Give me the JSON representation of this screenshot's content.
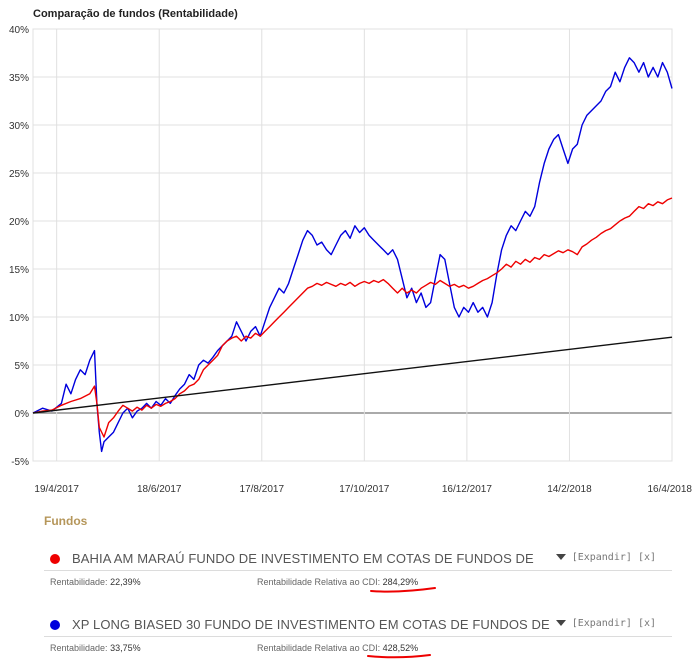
{
  "chart_data": {
    "type": "line",
    "title": "Comparação de fundos (Rentabilidade)",
    "xlabel": "",
    "ylabel": "",
    "ylim": [
      -5,
      40
    ],
    "yticks": [
      "-5%",
      "0%",
      "5%",
      "10%",
      "15%",
      "20%",
      "25%",
      "30%",
      "35%",
      "40%"
    ],
    "xticks": [
      "19/4/2017",
      "18/6/2017",
      "17/8/2017",
      "17/10/2017",
      "16/12/2017",
      "14/2/2018",
      "16/4/2018"
    ],
    "grid": true,
    "legend": "none",
    "series": [
      {
        "color": "#0000dd",
        "points": [
          [
            0,
            0
          ],
          [
            4,
            0.5
          ],
          [
            8,
            0.2
          ],
          [
            12,
            1.0
          ],
          [
            14,
            3.0
          ],
          [
            16,
            2.0
          ],
          [
            18,
            3.5
          ],
          [
            20,
            4.5
          ],
          [
            22,
            4.0
          ],
          [
            24,
            5.5
          ],
          [
            26,
            6.5
          ],
          [
            27,
            1.0
          ],
          [
            28,
            -2.0
          ],
          [
            29,
            -4.0
          ],
          [
            30,
            -3.0
          ],
          [
            32,
            -2.5
          ],
          [
            34,
            -2.0
          ],
          [
            36,
            -1.0
          ],
          [
            38,
            0.0
          ],
          [
            40,
            0.5
          ],
          [
            42,
            -0.5
          ],
          [
            44,
            0.2
          ],
          [
            46,
            0.5
          ],
          [
            48,
            1.0
          ],
          [
            50,
            0.5
          ],
          [
            52,
            1.2
          ],
          [
            54,
            0.8
          ],
          [
            56,
            1.5
          ],
          [
            58,
            1.0
          ],
          [
            60,
            1.8
          ],
          [
            62,
            2.5
          ],
          [
            64,
            3.0
          ],
          [
            66,
            4.0
          ],
          [
            68,
            3.5
          ],
          [
            70,
            5.0
          ],
          [
            72,
            5.5
          ],
          [
            74,
            5.2
          ],
          [
            76,
            5.8
          ],
          [
            78,
            6.5
          ],
          [
            80,
            7.0
          ],
          [
            82,
            7.5
          ],
          [
            84,
            8.0
          ],
          [
            86,
            9.5
          ],
          [
            88,
            8.5
          ],
          [
            90,
            7.5
          ],
          [
            92,
            8.5
          ],
          [
            94,
            9.0
          ],
          [
            96,
            8.0
          ],
          [
            98,
            9.5
          ],
          [
            100,
            11.0
          ],
          [
            102,
            12.0
          ],
          [
            104,
            13.0
          ],
          [
            106,
            12.5
          ],
          [
            108,
            13.5
          ],
          [
            110,
            15.0
          ],
          [
            112,
            16.5
          ],
          [
            114,
            18.0
          ],
          [
            116,
            19.0
          ],
          [
            118,
            18.5
          ],
          [
            120,
            17.5
          ],
          [
            122,
            17.8
          ],
          [
            124,
            17.0
          ],
          [
            126,
            16.5
          ],
          [
            128,
            17.5
          ],
          [
            130,
            18.5
          ],
          [
            132,
            19.0
          ],
          [
            134,
            18.2
          ],
          [
            136,
            19.5
          ],
          [
            138,
            18.8
          ],
          [
            140,
            19.3
          ],
          [
            142,
            18.5
          ],
          [
            144,
            18.0
          ],
          [
            146,
            17.5
          ],
          [
            148,
            17.0
          ],
          [
            150,
            16.5
          ],
          [
            152,
            17.0
          ],
          [
            154,
            16.0
          ],
          [
            156,
            14.0
          ],
          [
            158,
            12.0
          ],
          [
            160,
            13.0
          ],
          [
            162,
            11.5
          ],
          [
            164,
            12.5
          ],
          [
            166,
            11.0
          ],
          [
            168,
            11.5
          ],
          [
            170,
            14.0
          ],
          [
            172,
            16.5
          ],
          [
            174,
            16.0
          ],
          [
            176,
            13.5
          ],
          [
            178,
            11.0
          ],
          [
            180,
            10.0
          ],
          [
            182,
            11.0
          ],
          [
            184,
            10.5
          ],
          [
            186,
            11.5
          ],
          [
            188,
            10.5
          ],
          [
            190,
            11.0
          ],
          [
            192,
            10.0
          ],
          [
            194,
            11.5
          ],
          [
            196,
            14.5
          ],
          [
            198,
            17.0
          ],
          [
            200,
            18.5
          ],
          [
            202,
            19.5
          ],
          [
            204,
            19.0
          ],
          [
            206,
            20.0
          ],
          [
            208,
            21.0
          ],
          [
            210,
            20.5
          ],
          [
            212,
            21.5
          ],
          [
            214,
            24.0
          ],
          [
            216,
            26.0
          ],
          [
            218,
            27.5
          ],
          [
            220,
            28.5
          ],
          [
            222,
            29.0
          ],
          [
            224,
            27.5
          ],
          [
            226,
            26.0
          ],
          [
            228,
            27.5
          ],
          [
            230,
            28.0
          ],
          [
            232,
            30.0
          ],
          [
            234,
            31.0
          ],
          [
            236,
            31.5
          ],
          [
            238,
            32.0
          ],
          [
            240,
            32.5
          ],
          [
            242,
            33.5
          ],
          [
            244,
            34.0
          ],
          [
            246,
            35.5
          ],
          [
            248,
            34.5
          ],
          [
            250,
            36.0
          ],
          [
            252,
            37.0
          ],
          [
            254,
            36.5
          ],
          [
            256,
            35.5
          ],
          [
            258,
            36.5
          ],
          [
            260,
            35.0
          ],
          [
            262,
            36.0
          ],
          [
            264,
            35.0
          ],
          [
            266,
            36.5
          ],
          [
            268,
            35.5
          ],
          [
            270,
            33.8
          ]
        ]
      },
      {
        "color": "#ee0000",
        "points": [
          [
            0,
            0
          ],
          [
            4,
            0.2
          ],
          [
            8,
            0.3
          ],
          [
            12,
            0.8
          ],
          [
            16,
            1.2
          ],
          [
            20,
            1.5
          ],
          [
            24,
            2.0
          ],
          [
            26,
            2.8
          ],
          [
            27,
            1.0
          ],
          [
            28,
            -1.5
          ],
          [
            30,
            -2.5
          ],
          [
            32,
            -1.0
          ],
          [
            34,
            -0.5
          ],
          [
            36,
            0.2
          ],
          [
            38,
            0.8
          ],
          [
            40,
            0.5
          ],
          [
            42,
            0.2
          ],
          [
            44,
            0.6
          ],
          [
            46,
            0.3
          ],
          [
            48,
            0.8
          ],
          [
            50,
            0.5
          ],
          [
            52,
            0.9
          ],
          [
            54,
            0.7
          ],
          [
            56,
            1.0
          ],
          [
            58,
            1.2
          ],
          [
            60,
            1.5
          ],
          [
            62,
            2.0
          ],
          [
            64,
            2.3
          ],
          [
            66,
            2.8
          ],
          [
            68,
            3.0
          ],
          [
            70,
            3.5
          ],
          [
            72,
            4.5
          ],
          [
            74,
            5.0
          ],
          [
            76,
            5.5
          ],
          [
            78,
            6.0
          ],
          [
            80,
            7.0
          ],
          [
            82,
            7.5
          ],
          [
            84,
            7.8
          ],
          [
            86,
            8.0
          ],
          [
            88,
            7.5
          ],
          [
            90,
            8.0
          ],
          [
            92,
            7.8
          ],
          [
            94,
            8.3
          ],
          [
            96,
            8.0
          ],
          [
            98,
            8.5
          ],
          [
            100,
            9.0
          ],
          [
            102,
            9.5
          ],
          [
            104,
            10.0
          ],
          [
            106,
            10.5
          ],
          [
            108,
            11.0
          ],
          [
            110,
            11.5
          ],
          [
            112,
            12.0
          ],
          [
            114,
            12.5
          ],
          [
            116,
            13.0
          ],
          [
            118,
            13.2
          ],
          [
            120,
            13.5
          ],
          [
            122,
            13.3
          ],
          [
            124,
            13.6
          ],
          [
            126,
            13.4
          ],
          [
            128,
            13.2
          ],
          [
            130,
            13.5
          ],
          [
            132,
            13.3
          ],
          [
            134,
            13.6
          ],
          [
            136,
            13.2
          ],
          [
            138,
            13.5
          ],
          [
            140,
            13.7
          ],
          [
            142,
            13.5
          ],
          [
            144,
            13.8
          ],
          [
            146,
            13.6
          ],
          [
            148,
            13.9
          ],
          [
            150,
            13.5
          ],
          [
            152,
            13.0
          ],
          [
            154,
            12.5
          ],
          [
            156,
            13.0
          ],
          [
            158,
            12.5
          ],
          [
            160,
            12.8
          ],
          [
            162,
            12.5
          ],
          [
            164,
            13.0
          ],
          [
            166,
            13.3
          ],
          [
            168,
            13.6
          ],
          [
            170,
            13.4
          ],
          [
            172,
            13.8
          ],
          [
            174,
            13.5
          ],
          [
            176,
            13.2
          ],
          [
            178,
            13.4
          ],
          [
            180,
            13.1
          ],
          [
            182,
            13.3
          ],
          [
            184,
            13.0
          ],
          [
            186,
            13.2
          ],
          [
            188,
            13.5
          ],
          [
            190,
            13.8
          ],
          [
            192,
            14.0
          ],
          [
            194,
            14.3
          ],
          [
            196,
            14.6
          ],
          [
            198,
            15.0
          ],
          [
            200,
            15.5
          ],
          [
            202,
            15.2
          ],
          [
            204,
            15.8
          ],
          [
            206,
            15.5
          ],
          [
            208,
            16.0
          ],
          [
            210,
            15.7
          ],
          [
            212,
            16.2
          ],
          [
            214,
            16.0
          ],
          [
            216,
            16.5
          ],
          [
            218,
            16.3
          ],
          [
            220,
            16.6
          ],
          [
            222,
            16.9
          ],
          [
            224,
            16.7
          ],
          [
            226,
            17.0
          ],
          [
            228,
            16.8
          ],
          [
            230,
            16.5
          ],
          [
            232,
            17.3
          ],
          [
            234,
            17.6
          ],
          [
            236,
            18.0
          ],
          [
            238,
            18.3
          ],
          [
            240,
            18.7
          ],
          [
            242,
            19.0
          ],
          [
            244,
            19.2
          ],
          [
            246,
            19.6
          ],
          [
            248,
            20.0
          ],
          [
            250,
            20.3
          ],
          [
            252,
            20.5
          ],
          [
            254,
            21.0
          ],
          [
            256,
            21.5
          ],
          [
            258,
            21.3
          ],
          [
            260,
            21.8
          ],
          [
            262,
            21.6
          ],
          [
            264,
            22.0
          ],
          [
            266,
            21.8
          ],
          [
            268,
            22.2
          ],
          [
            270,
            22.4
          ]
        ]
      },
      {
        "color": "#111111",
        "points": [
          [
            0,
            0
          ],
          [
            270,
            7.9
          ]
        ]
      }
    ]
  },
  "section_title": "Fundos",
  "funds": [
    {
      "name": "BAHIA AM MARAÚ FUNDO DE INVESTIMENTO EM COTAS DE FUNDOS DE",
      "color": "#ee0000",
      "expand_label": "[Expandir]",
      "close_label": "[x]",
      "rent_label": "Rentabilidade:",
      "rent_value": "22,39%",
      "rel_label": "Rentabilidade Relativa ao CDI:",
      "rel_value": "284,29%"
    },
    {
      "name": "XP LONG BIASED 30 FUNDO DE INVESTIMENTO EM COTAS DE FUNDOS DE",
      "color": "#0000dd",
      "expand_label": "[Expandir]",
      "close_label": "[x]",
      "rent_label": "Rentabilidade:",
      "rent_value": "33,75%",
      "rel_label": "Rentabilidade Relativa ao CDI:",
      "rel_value": "428,52%"
    }
  ]
}
